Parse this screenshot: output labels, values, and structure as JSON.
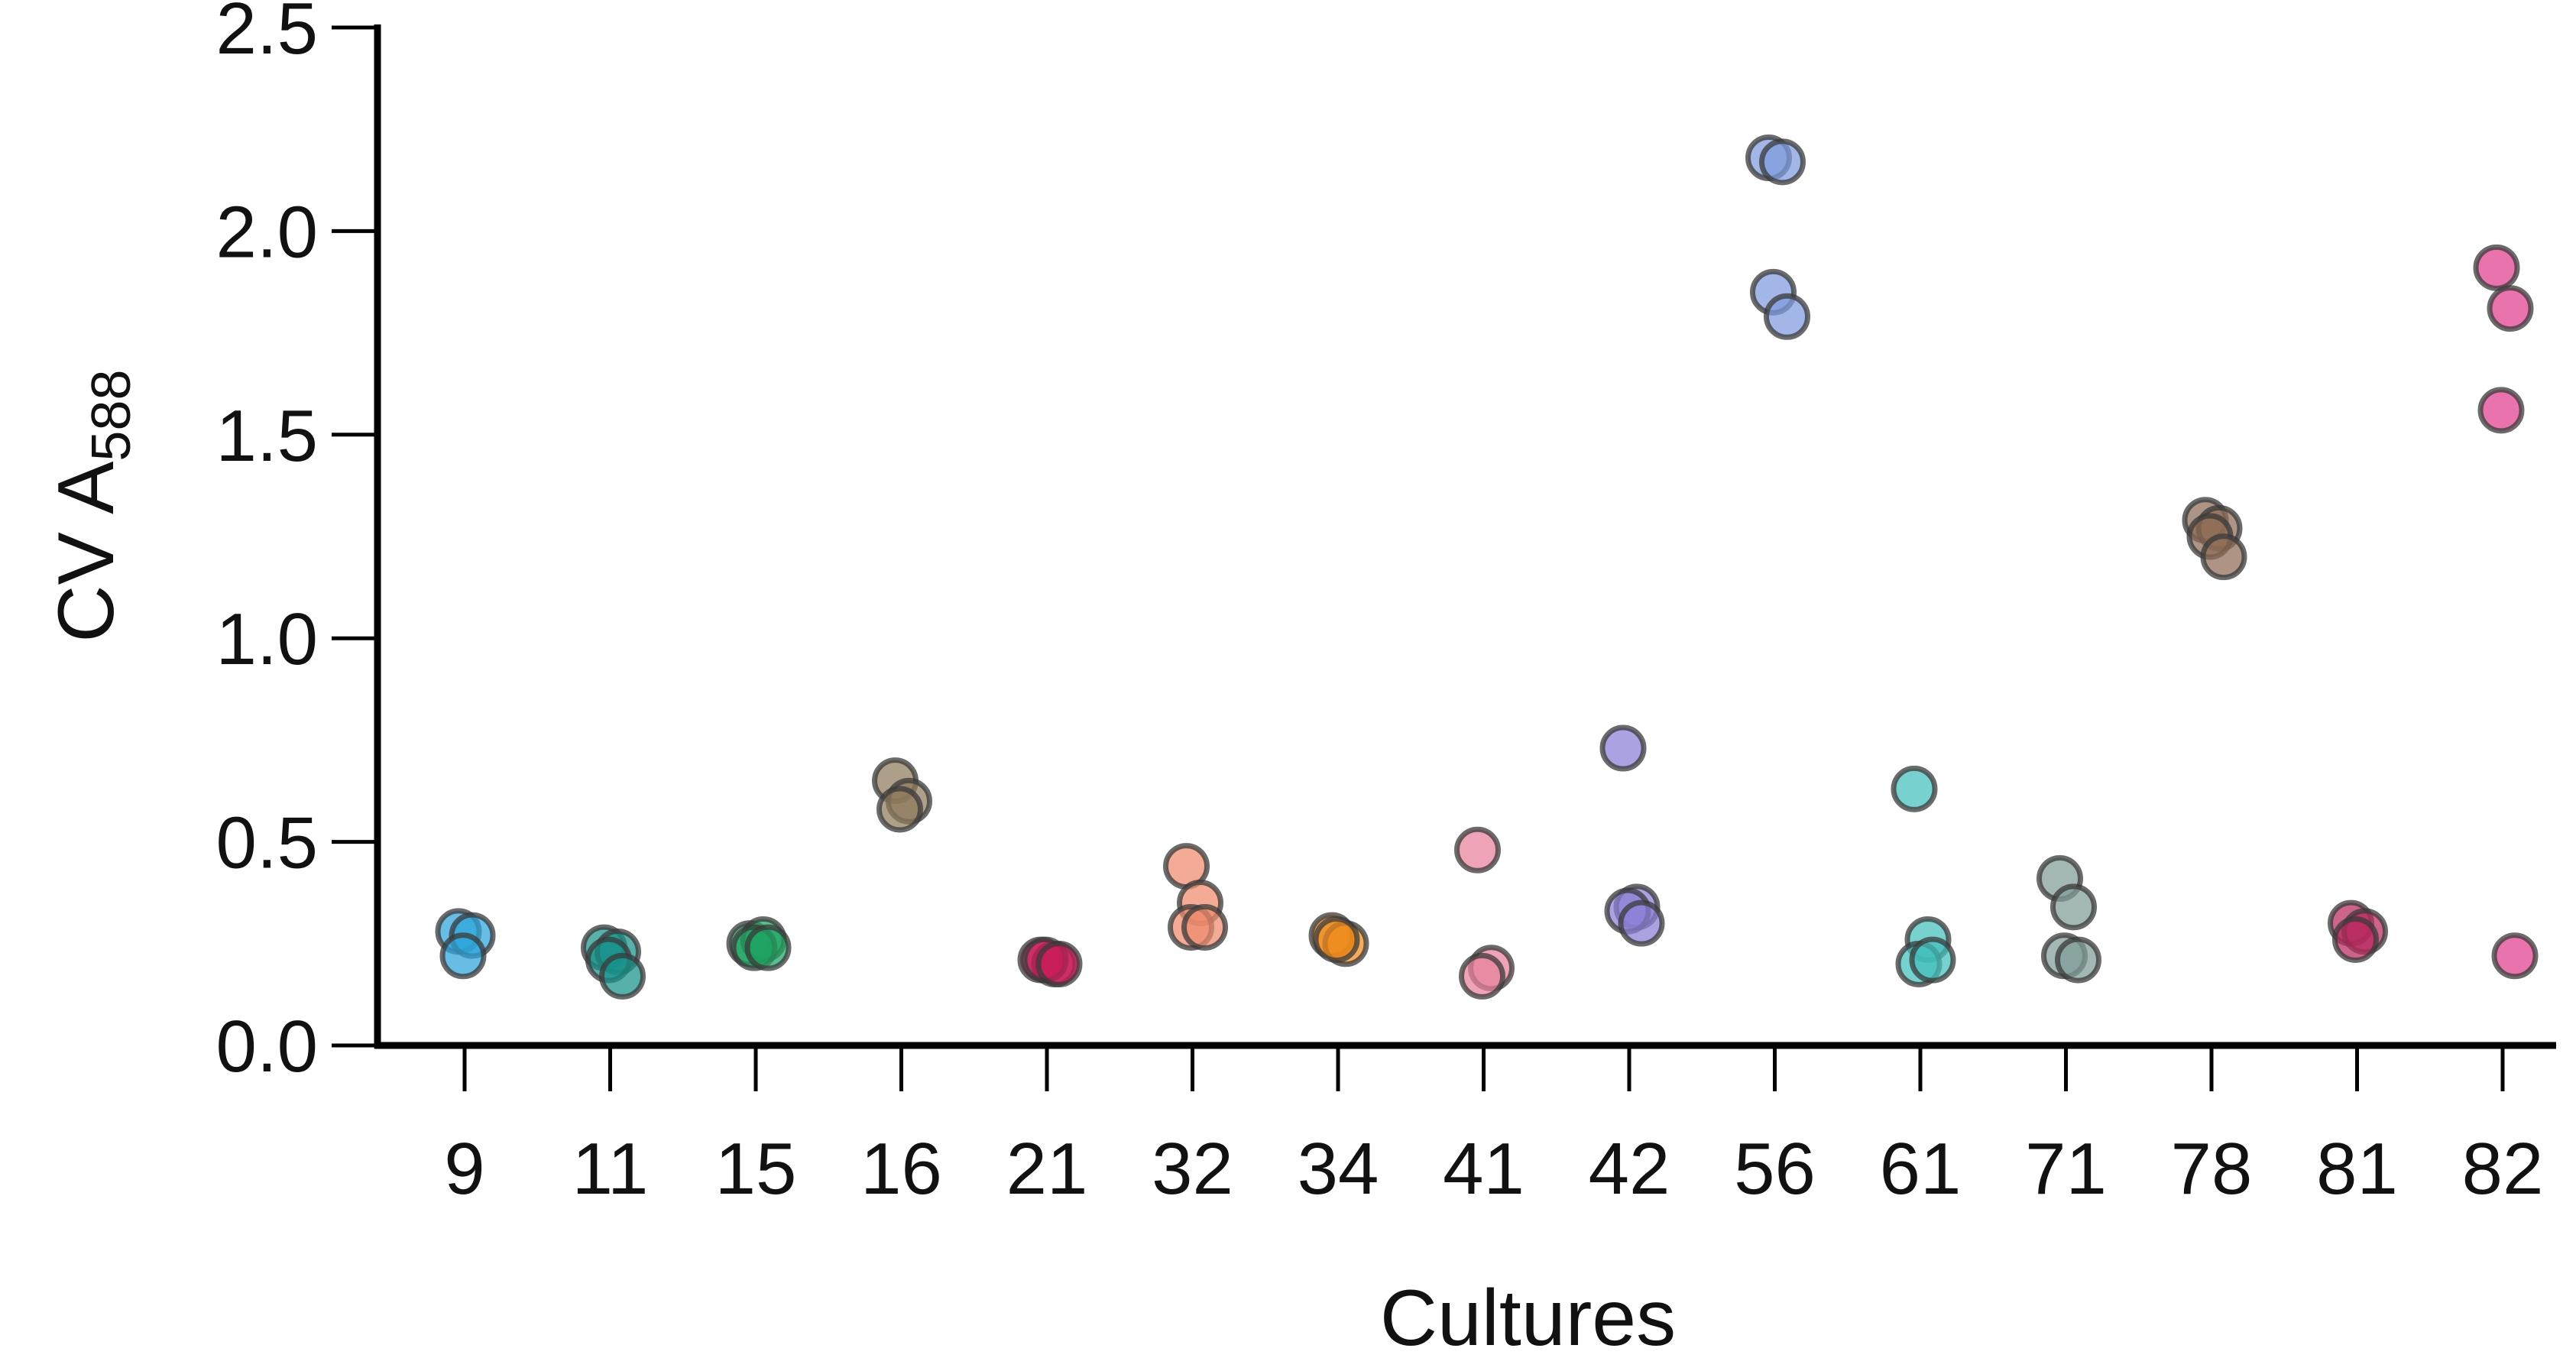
{
  "chart_data": {
    "type": "scatter",
    "title": "",
    "xlabel": "Cultures",
    "ylabel": "CV A",
    "ylabel_sub": "588",
    "ylim": [
      0,
      2.5
    ],
    "yticks": [
      "0.0",
      "0.5",
      "1.0",
      "1.5",
      "2.0",
      "2.5"
    ],
    "grid": false,
    "categories": [
      "9",
      "11",
      "15",
      "16",
      "21",
      "32",
      "34",
      "41",
      "42",
      "56",
      "61",
      "71",
      "78",
      "81",
      "82"
    ],
    "series": [
      {
        "category": "9",
        "color": "#2ea3da",
        "values": [
          0.28,
          0.27,
          0.22
        ]
      },
      {
        "category": "11",
        "color": "#17918a",
        "values": [
          0.24,
          0.23,
          0.21,
          0.17
        ]
      },
      {
        "category": "15",
        "color": "#1fa463",
        "values": [
          0.25,
          0.26,
          0.24,
          0.24
        ]
      },
      {
        "category": "16",
        "color": "#8f7a5c",
        "values": [
          0.65,
          0.6,
          0.58
        ]
      },
      {
        "category": "21",
        "color": "#c81d5c",
        "values": [
          0.21,
          0.2,
          0.21,
          0.2
        ]
      },
      {
        "category": "32",
        "color": "#ef8a6e",
        "values": [
          0.44,
          0.35,
          0.29,
          0.29
        ]
      },
      {
        "category": "34",
        "color": "#f08a1c",
        "values": [
          0.27,
          0.25,
          0.26
        ]
      },
      {
        "category": "41",
        "color": "#e8819a",
        "values": [
          0.48,
          0.19,
          0.17
        ]
      },
      {
        "category": "42",
        "color": "#8a7fd6",
        "values": [
          0.73,
          0.34,
          0.33,
          0.3
        ]
      },
      {
        "category": "56",
        "color": "#7e9bde",
        "values": [
          2.18,
          2.17,
          1.85,
          1.79
        ]
      },
      {
        "category": "61",
        "color": "#43bfbd",
        "values": [
          0.63,
          0.26,
          0.2,
          0.21
        ]
      },
      {
        "category": "71",
        "color": "#7f9c98",
        "values": [
          0.41,
          0.34,
          0.22,
          0.21
        ]
      },
      {
        "category": "78",
        "color": "#8d6b54",
        "values": [
          1.29,
          1.27,
          1.25,
          1.2
        ]
      },
      {
        "category": "81",
        "color": "#b8285e",
        "values": [
          0.3,
          0.28,
          0.26
        ]
      },
      {
        "category": "82",
        "color": "#e03d8c",
        "values": [
          1.91,
          1.81,
          1.56,
          0.22
        ]
      }
    ]
  }
}
